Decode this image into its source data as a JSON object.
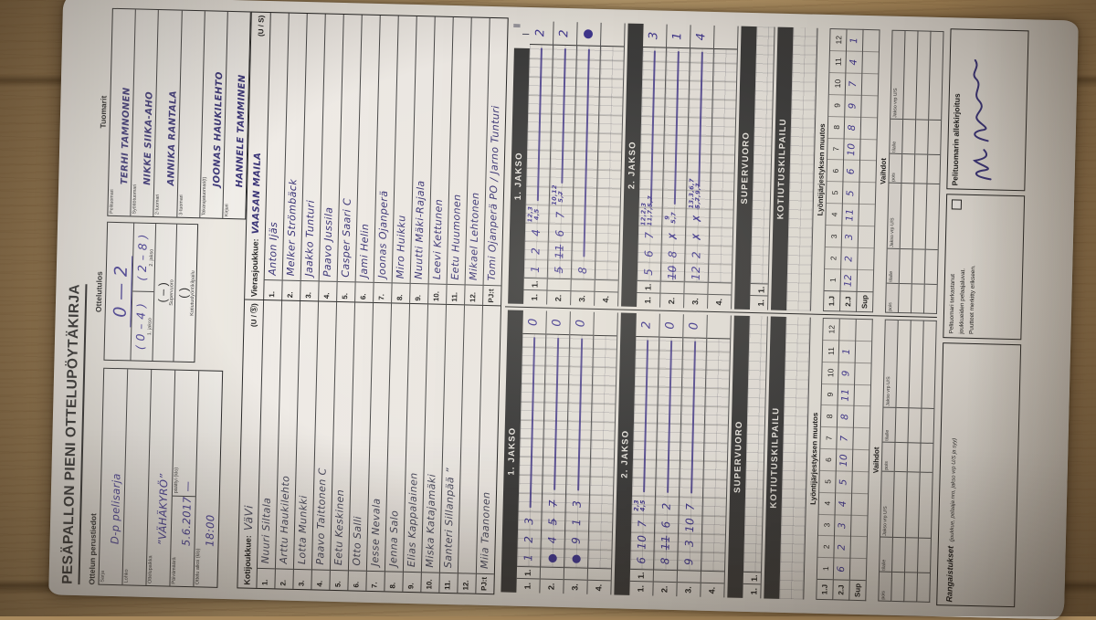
{
  "title": "PESÄPALLON PIENI OTTELUPÖYTÄKIRJA",
  "theme": {
    "paper": "#ebe7e0",
    "bar": "#3c3c3c",
    "ink_pen": "#352f74",
    "ink_purple": "#3f3692",
    "ink_pencil": "#4b4c60",
    "wood": "#b79a6d"
  },
  "info": {
    "heading": "Ottelun perustiedot",
    "sarja_label": "Sarja",
    "sarja": "D-p pelisarja",
    "lohko_label": "Lohko",
    "lohko": "",
    "paikka_label": "Ottelupaikka",
    "paikka": "”VÄHÄKYRÖ”",
    "pvm_label": "Päivämäärä",
    "pvm": "5.6.2017",
    "paattyi_label": "päättyi (klo)",
    "paattyi": "—",
    "alkoi_label": "Ottelu alkoi (klo)",
    "alkoi": "18:00"
  },
  "result": {
    "heading": "Ottelutulos",
    "final": "0 — 2",
    "jakso1": "( 0 – 4 )",
    "jakso1_label": "1. jakso",
    "jakso2": "( 2 – 8 )",
    "jakso2_label": "2. jakso",
    "supervuoro": "(    –    )",
    "supervuoro_label": "Supervuoro",
    "kotiutus": "(        )",
    "kotiutus_label": "Kotiutuslyöntikilpailu"
  },
  "referees": {
    "heading": "Tuomarit",
    "rows": [
      {
        "label": "Pelituomari",
        "value": "TERHI TAMNONEN"
      },
      {
        "label": "Syöttötuomari",
        "value": "NIKKE SIIKA-AHO"
      },
      {
        "label": "2-tuomari",
        "value": "ANNIKA RANTALA"
      },
      {
        "label": "3-tuomari",
        "value": ""
      },
      {
        "label": "Takarajatuomari(t)",
        "value": "JOONAS HAUKILEHTO"
      },
      {
        "label": "Kirjuri",
        "value": "HANNELE TAMMINEN"
      }
    ]
  },
  "home": {
    "label": "Kotijoukkue:",
    "name": "VäVi",
    "us": "(U / Ⓢ)",
    "players": [
      "Nuuri Siltala",
      "Arttu Haukilehto",
      "Lotta Munkki",
      "Paavo Taittonen  C",
      "Eetu Keskinen",
      "Otto Salli",
      "Jesse Nevala",
      "Jenna Salo",
      "Elias Kappalainen",
      "Miska Katajamäki",
      "Santeri Sillanpää ”",
      "",
      ""
    ],
    "pjt_label": "PJ:t",
    "pjt": "Miia Taanonen"
  },
  "away": {
    "label": "Vierasjoukkue:",
    "name": "VAASAN MAILA",
    "us": "(U / S)",
    "players": [
      "Anton Ijäs",
      "Melker Strömbäck",
      "Jaakko Tunturi",
      "Paavo Jussila",
      "Casper Saari  C",
      "Jami Helin",
      "Joonas Ojanperä",
      "Miro Huikku",
      "Nuutti Mäki-Rajala",
      "Leevi Kettunen",
      "Eetu Huumonen",
      "Mikael Lehtonen"
    ],
    "pjt_label": "PJ:t",
    "pjt": "Tomi Ojanperä PO / Jarno Tunturi"
  },
  "scoring": {
    "jakso1_bar": "1. JAKSO",
    "jakso2_bar": "2. JAKSO",
    "supervuoro_bar": "SUPERVUORO",
    "kotiutus_bar": "KOTIUTUSKILPAILU",
    "row_labels": [
      "1.",
      "2.",
      "3.",
      "4."
    ],
    "sv_row": [
      "1.",
      "1."
    ],
    "away_j1_marks": [
      "Ⅱ",
      "Ⅰ"
    ],
    "home_j1": [
      {
        "cells": [
          "1",
          "2",
          "3"
        ],
        "line": true,
        "total": "0"
      },
      {
        "cells": [
          "●",
          "4",
          "5̶",
          "7̶"
        ],
        "line": true,
        "total": "0"
      },
      {
        "cells": [
          "●",
          "9",
          "1",
          "3"
        ],
        "line": true,
        "total": "0"
      },
      {
        "cells": [],
        "line": false,
        "total": ""
      }
    ],
    "away_j1": [
      {
        "cells": [
          "1",
          "2",
          "4",
          "12,3|4,5"
        ],
        "line": true,
        "total": "2"
      },
      {
        "cells": [
          "5̶",
          "1̶1̶",
          "6",
          "7",
          "10,12|5,7̶"
        ],
        "line": true,
        "total": "2"
      },
      {
        "cells": [
          "8"
        ],
        "line": true,
        "total": "●"
      },
      {
        "cells": [],
        "line": false,
        "total": ""
      }
    ],
    "home_j2": [
      {
        "cells": [
          "6",
          "10",
          "7",
          "2,3|4,5"
        ],
        "line": true,
        "total": "2"
      },
      {
        "cells": [
          "8",
          "1̶1̶",
          "6",
          "2"
        ],
        "line": true,
        "total": "0"
      },
      {
        "cells": [
          "9",
          "3",
          "10",
          "7"
        ],
        "line": true,
        "total": "0"
      },
      {
        "cells": [],
        "line": false,
        "total": ""
      }
    ],
    "away_j2": [
      {
        "cells": [
          "5",
          "6",
          "7",
          "12,2,3|11,7,5̶,7̶"
        ],
        "line": true,
        "total": "3"
      },
      {
        "cells": [
          "1̶0̶",
          "8",
          "✗",
          "9|5,7"
        ],
        "line": true,
        "total": "1"
      },
      {
        "cells": [
          "12",
          "2",
          "✗",
          "✗",
          "13,3,6,7|5̶,7̶,9,7̶"
        ],
        "line": true,
        "total": "4"
      },
      {
        "cells": [],
        "line": false,
        "total": ""
      }
    ],
    "home_order2": [
      "6",
      "2",
      "3",
      "4",
      "5",
      "10",
      "7",
      "8",
      "11",
      "9",
      "1",
      ""
    ],
    "away_order2": [
      "12",
      "2",
      "3",
      "11",
      "5",
      "6",
      "10",
      "8",
      "9",
      "7",
      "4",
      "1"
    ]
  },
  "lyonti": {
    "heading": "Lyöntijärjestyksen muutos",
    "row_labels": [
      "1.J",
      "2.J",
      "Sup"
    ],
    "initial": [
      "1",
      "2",
      "3",
      "4",
      "5",
      "6",
      "7",
      "8",
      "9",
      "10",
      "11",
      "12"
    ]
  },
  "vaihdot": {
    "heading": "Vaihdot",
    "cols": [
      "pois",
      "tilalle",
      "Jakso vrp U/S",
      "pois",
      "tilalle",
      "Jakso vrp U/S"
    ]
  },
  "bottom": {
    "rangaistukset_bold": "Rangaistukset",
    "rangaistukset_note": "(joukkue, pelaaja nro, jakso vrp U/S ja syy)",
    "check_line1": "Pelituomari tarkastanut",
    "check_line2": "joukkueiden pelaajaluvat.",
    "check_line3": "Puutteet merkitty erikseen.",
    "sig_label": "Pelituomarin allekirjoitus"
  }
}
